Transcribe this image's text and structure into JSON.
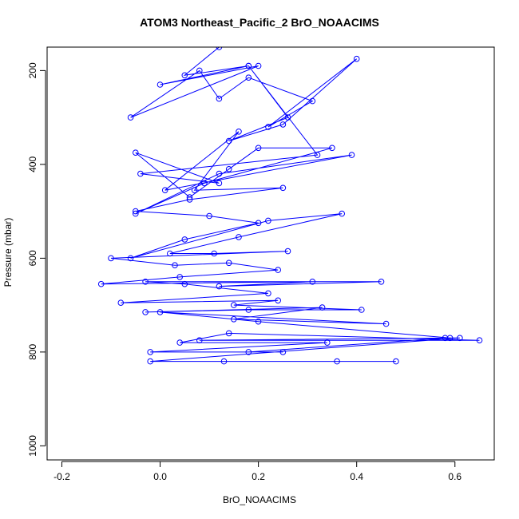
{
  "chart_data": {
    "type": "scatter",
    "title": "ATOM3 Northeast_Pacific_2 BrO_NOAACIMS",
    "xlabel": "BrO_NOAACIMS",
    "ylabel": "Pressure (mbar)",
    "xlim": [
      -0.23,
      0.68
    ],
    "ylim": [
      1030,
      150
    ],
    "y_reversed": true,
    "x_ticks": [
      -0.2,
      0.0,
      0.2,
      0.4,
      0.6
    ],
    "x_tick_labels": [
      "-0.2",
      "0.0",
      "0.2",
      "0.4",
      "0.6"
    ],
    "y_ticks": [
      200,
      400,
      600,
      800,
      1000
    ],
    "y_tick_labels": [
      "200",
      "400",
      "600",
      "800",
      "1000"
    ],
    "grid": false,
    "legend": "none",
    "color": "#0000ff",
    "series": [
      {
        "x": [
          0.12,
          0.05,
          0.18,
          0.0,
          0.2,
          -0.06,
          0.08,
          0.12,
          0.18,
          0.31,
          0.22,
          0.4,
          0.25,
          0.14,
          0.26,
          0.18,
          0.32,
          -0.04,
          0.12,
          -0.05,
          0.06,
          0.14,
          0.2,
          0.35,
          0.09,
          -0.05,
          0.12,
          0.39,
          0.01,
          0.16,
          0.07,
          0.25,
          0.06,
          -0.05,
          0.1,
          0.2,
          0.05,
          -0.06,
          0.22,
          0.37,
          0.16,
          0.02,
          0.11,
          0.26,
          -0.1,
          0.03,
          0.14,
          0.24,
          0.04,
          -0.12,
          0.31,
          0.12,
          0.45,
          -0.03,
          0.05,
          0.22,
          -0.08,
          0.24,
          0.15,
          0.41,
          0.18,
          -0.03,
          0.33,
          0.15,
          0.46,
          0.0,
          0.2,
          0.59,
          0.08,
          0.65,
          0.14,
          0.04,
          0.34,
          -0.02,
          0.25,
          0.18,
          0.58,
          0.61,
          -0.02,
          0.13,
          0.48,
          0.36
        ],
        "y": [
          150,
          210,
          190,
          230,
          190,
          300,
          200,
          260,
          215,
          265,
          320,
          175,
          315,
          350,
          300,
          190,
          380,
          420,
          440,
          375,
          470,
          410,
          365,
          365,
          440,
          505,
          420,
          380,
          455,
          330,
          455,
          450,
          475,
          500,
          510,
          525,
          560,
          600,
          520,
          505,
          555,
          590,
          590,
          585,
          600,
          615,
          610,
          625,
          640,
          655,
          650,
          660,
          650,
          650,
          655,
          675,
          695,
          690,
          700,
          710,
          710,
          715,
          705,
          730,
          740,
          715,
          735,
          770,
          775,
          775,
          760,
          780,
          780,
          800,
          800,
          800,
          770,
          770,
          820,
          820,
          820,
          820
        ]
      }
    ]
  }
}
